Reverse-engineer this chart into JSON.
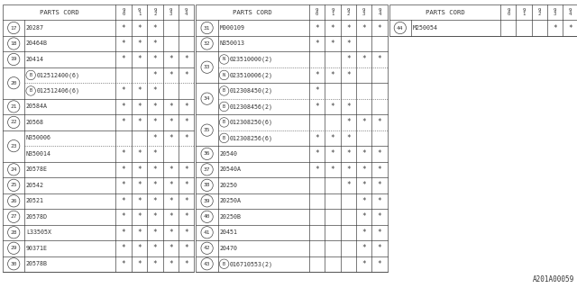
{
  "footer": "A201A00059",
  "line_color": "#444444",
  "font_color": "#333333",
  "table1_rows": [
    {
      "num": "17",
      "part": "20287",
      "prefix": "",
      "stars": [
        1,
        1,
        1,
        0,
        0
      ]
    },
    {
      "num": "18",
      "part": "20464B",
      "prefix": "",
      "stars": [
        1,
        1,
        1,
        0,
        0
      ]
    },
    {
      "num": "19",
      "part": "20414",
      "prefix": "",
      "stars": [
        1,
        1,
        1,
        1,
        1
      ]
    },
    {
      "num": "20",
      "part": "012512400(6)",
      "prefix": "B",
      "stars": [
        0,
        0,
        1,
        1,
        1
      ]
    },
    {
      "num": "20",
      "part": "012512406(6)",
      "prefix": "B",
      "stars": [
        1,
        1,
        1,
        0,
        0
      ]
    },
    {
      "num": "21",
      "part": "20584A",
      "prefix": "",
      "stars": [
        1,
        1,
        1,
        1,
        1
      ]
    },
    {
      "num": "22",
      "part": "20568",
      "prefix": "",
      "stars": [
        1,
        1,
        1,
        1,
        1
      ]
    },
    {
      "num": "23",
      "part": "N350006",
      "prefix": "",
      "stars": [
        0,
        0,
        1,
        1,
        1
      ]
    },
    {
      "num": "23",
      "part": "N350014",
      "prefix": "",
      "stars": [
        1,
        1,
        1,
        0,
        0
      ]
    },
    {
      "num": "24",
      "part": "20578E",
      "prefix": "",
      "stars": [
        1,
        1,
        1,
        1,
        1
      ]
    },
    {
      "num": "25",
      "part": "20542",
      "prefix": "",
      "stars": [
        1,
        1,
        1,
        1,
        1
      ]
    },
    {
      "num": "26",
      "part": "20521",
      "prefix": "",
      "stars": [
        1,
        1,
        1,
        1,
        1
      ]
    },
    {
      "num": "27",
      "part": "20578D",
      "prefix": "",
      "stars": [
        1,
        1,
        1,
        1,
        1
      ]
    },
    {
      "num": "28",
      "part": "L33505X",
      "prefix": "",
      "stars": [
        1,
        1,
        1,
        1,
        1
      ]
    },
    {
      "num": "29",
      "part": "90371E",
      "prefix": "",
      "stars": [
        1,
        1,
        1,
        1,
        1
      ]
    },
    {
      "num": "30",
      "part": "20578B",
      "prefix": "",
      "stars": [
        1,
        1,
        1,
        1,
        1
      ]
    }
  ],
  "table2_rows": [
    {
      "num": "31",
      "part": "M000109",
      "prefix": "",
      "stars": [
        1,
        1,
        1,
        1,
        1
      ]
    },
    {
      "num": "32",
      "part": "N350013",
      "prefix": "",
      "stars": [
        1,
        1,
        1,
        0,
        0
      ]
    },
    {
      "num": "33",
      "part": "023510000(2)",
      "prefix": "N",
      "stars": [
        0,
        0,
        1,
        1,
        1
      ]
    },
    {
      "num": "33",
      "part": "023510006(2)",
      "prefix": "N",
      "stars": [
        1,
        1,
        1,
        0,
        0
      ]
    },
    {
      "num": "34",
      "part": "012308450(2)",
      "prefix": "B",
      "stars": [
        1,
        0,
        0,
        0,
        0
      ]
    },
    {
      "num": "34",
      "part": "012308456(2)",
      "prefix": "B",
      "stars": [
        1,
        1,
        1,
        0,
        0
      ]
    },
    {
      "num": "35",
      "part": "012308250(6)",
      "prefix": "B",
      "stars": [
        0,
        0,
        1,
        1,
        1
      ]
    },
    {
      "num": "35",
      "part": "012308256(6)",
      "prefix": "B",
      "stars": [
        1,
        1,
        1,
        0,
        0
      ]
    },
    {
      "num": "36",
      "part": "20540",
      "prefix": "",
      "stars": [
        1,
        1,
        1,
        1,
        1
      ]
    },
    {
      "num": "37",
      "part": "20540A",
      "prefix": "",
      "stars": [
        1,
        1,
        1,
        1,
        1
      ]
    },
    {
      "num": "38",
      "part": "20250",
      "prefix": "",
      "stars": [
        0,
        0,
        1,
        1,
        1
      ]
    },
    {
      "num": "39",
      "part": "20250A",
      "prefix": "",
      "stars": [
        0,
        0,
        0,
        1,
        1
      ]
    },
    {
      "num": "40",
      "part": "20250B",
      "prefix": "",
      "stars": [
        0,
        0,
        0,
        1,
        1
      ]
    },
    {
      "num": "41",
      "part": "20451",
      "prefix": "",
      "stars": [
        0,
        0,
        0,
        1,
        1
      ]
    },
    {
      "num": "42",
      "part": "20470",
      "prefix": "",
      "stars": [
        0,
        0,
        0,
        1,
        1
      ]
    },
    {
      "num": "43",
      "part": "016710553(2)",
      "prefix": "B",
      "stars": [
        0,
        0,
        0,
        1,
        1
      ]
    }
  ],
  "table3_rows": [
    {
      "num": "44",
      "part": "M250054",
      "prefix": "",
      "stars": [
        0,
        0,
        0,
        1,
        1
      ]
    }
  ]
}
